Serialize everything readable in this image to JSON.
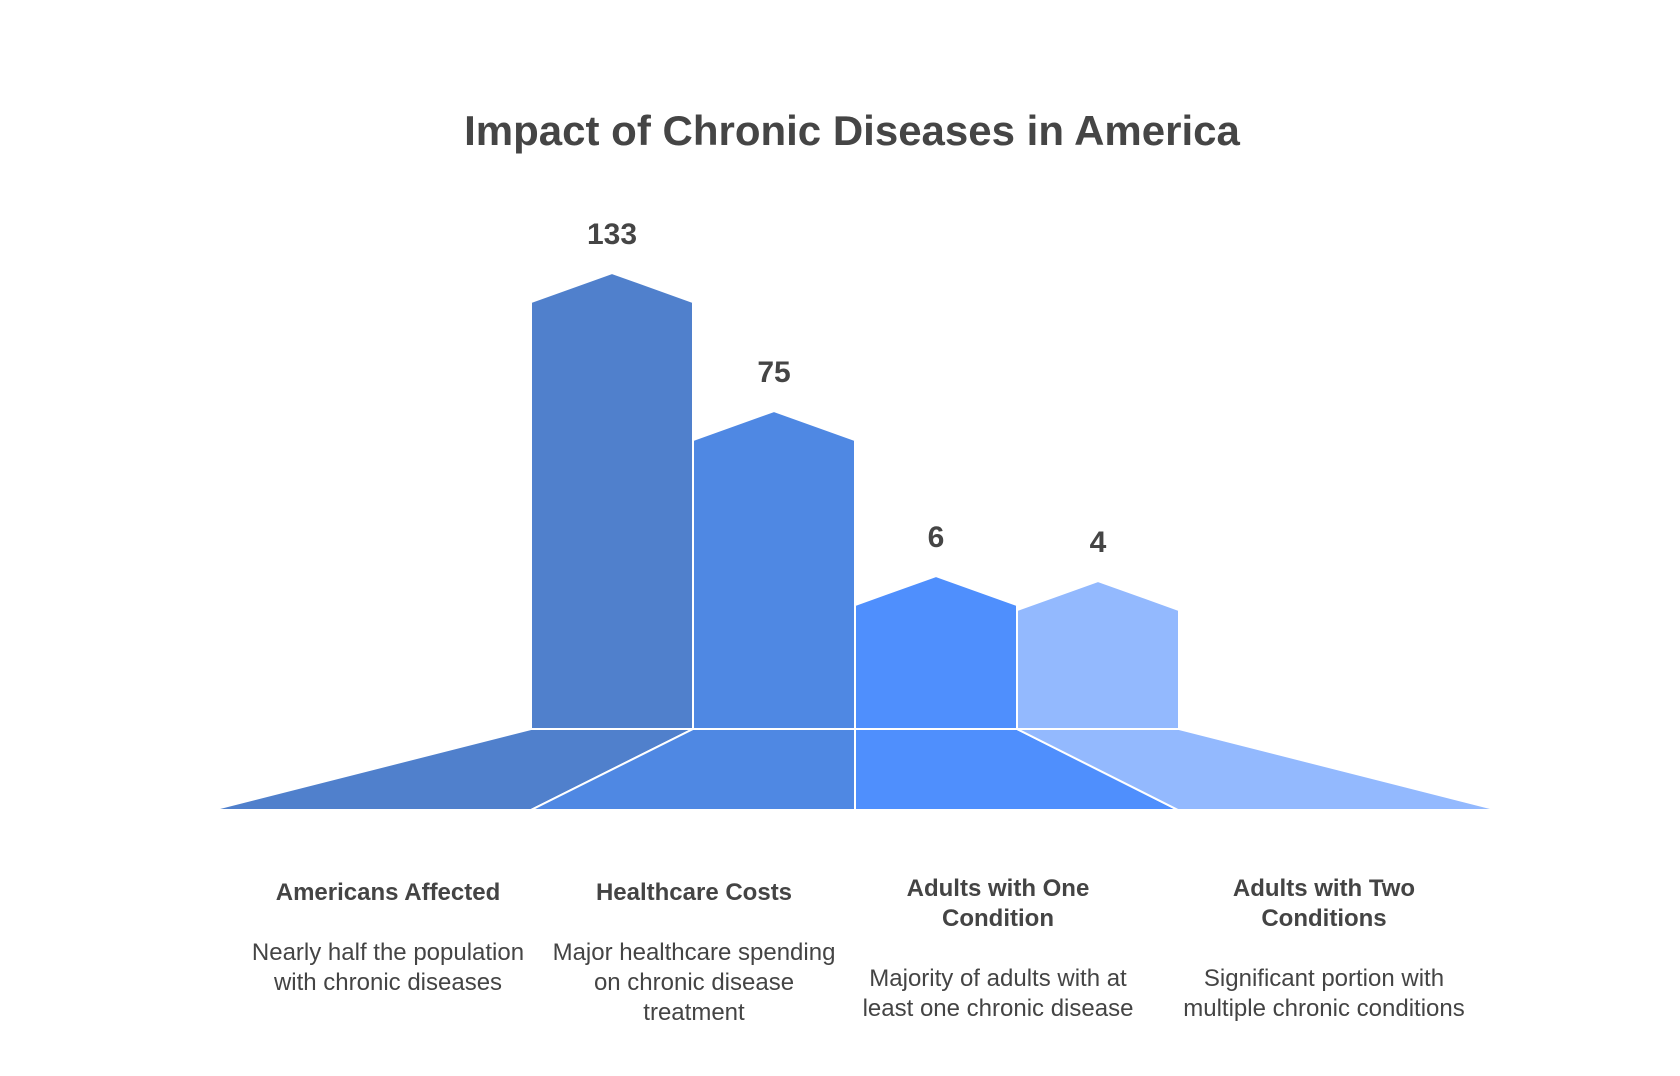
{
  "chart_data": {
    "type": "bar",
    "title": "Impact of Chronic Diseases in America",
    "categories": [
      "Americans Affected",
      "Healthcare Costs",
      "Adults with One Condition",
      "Adults with Two Conditions"
    ],
    "values": [
      133,
      75,
      6,
      4
    ],
    "value_labels": [
      "133",
      "75",
      "6",
      "4"
    ],
    "descriptions": [
      "Nearly half the population with chronic diseases",
      "Major healthcare spending on chronic disease treatment",
      "Majority of adults with at least one chronic disease",
      "Significant portion with multiple chronic conditions"
    ],
    "colors": [
      "#5080CC",
      "#4F88E3",
      "#4F8FFD",
      "#93B9FE"
    ],
    "xlabel": "",
    "ylabel": "",
    "grid": false,
    "legend": "none"
  }
}
